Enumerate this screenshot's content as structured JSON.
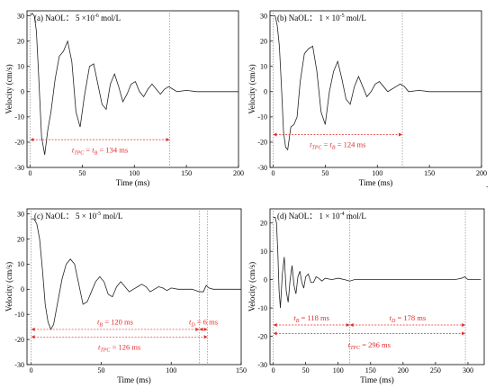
{
  "chart_data": [
    {
      "type": "line",
      "label": "(a)",
      "title_text": "NaOL：  5 ×10",
      "title_exp": "-6",
      "title_unit": " mol/L",
      "xlabel": "Time (ms)",
      "ylabel": "Velocity (cm/s)",
      "xlim": [
        -3,
        200
      ],
      "ylim": [
        -30,
        32
      ],
      "xticks": [
        0,
        50,
        100,
        150,
        200
      ],
      "yticks": [
        -30,
        -20,
        -10,
        0,
        10,
        20,
        30
      ],
      "series": [
        {
          "x": [
            0,
            2,
            4,
            6,
            8,
            11,
            14,
            17,
            20,
            24,
            28,
            32,
            36,
            40,
            44,
            48,
            52,
            57,
            61,
            65,
            69,
            73,
            77,
            81,
            85,
            89,
            93,
            97,
            101,
            105,
            109,
            113,
            117,
            121,
            125,
            129,
            133,
            137,
            141,
            150,
            160,
            170,
            180,
            190,
            200
          ],
          "y": [
            30,
            31,
            30,
            24,
            8,
            -18,
            -25,
            -15,
            -8,
            5,
            14,
            16,
            20,
            12,
            -8,
            -14,
            -2,
            10,
            11,
            3,
            -5,
            -7,
            3,
            7,
            2,
            -4,
            -1,
            3,
            4,
            0,
            -2,
            1,
            3,
            1,
            -1,
            1,
            2,
            1,
            0,
            0.5,
            0,
            0,
            0,
            0,
            0
          ]
        }
      ],
      "guides": [
        0,
        134
      ],
      "annotations": [
        {
          "text": "t",
          "sub": "TPC",
          "eq": " = ",
          "text2": "t",
          "sub2": "B",
          "value": " = 134 ms",
          "x_from": 0,
          "x_to": 134,
          "y": -19,
          "label_y": -23
        }
      ]
    },
    {
      "type": "line",
      "label": "(b)",
      "title_text": "NaOL：  1 × 10",
      "title_exp": "-5",
      "title_unit": " mol/L",
      "xlabel": "Time (ms)",
      "ylabel": "Velocity (cm/s)",
      "xlim": [
        -3,
        200
      ],
      "ylim": [
        -30,
        32
      ],
      "xticks": [
        0,
        50,
        100,
        150,
        200
      ],
      "yticks": [
        -30,
        -20,
        -10,
        0,
        10,
        20,
        30
      ],
      "series": [
        {
          "x": [
            0,
            2,
            4,
            6,
            8,
            10,
            12,
            14,
            17,
            20,
            23,
            26,
            30,
            34,
            38,
            42,
            46,
            50,
            54,
            58,
            62,
            66,
            70,
            74,
            78,
            82,
            86,
            90,
            94,
            98,
            102,
            106,
            110,
            114,
            118,
            122,
            126,
            130,
            140,
            150,
            160,
            170,
            180,
            190,
            200
          ],
          "y": [
            30,
            30,
            26,
            18,
            2,
            -16,
            -22,
            -23,
            -14,
            -13,
            -10,
            4,
            15,
            17,
            18,
            8,
            -8,
            -13,
            0,
            8,
            12,
            5,
            -3,
            -5,
            2,
            6,
            2,
            -2,
            0,
            3,
            4,
            2,
            0,
            1,
            2,
            3,
            2,
            0,
            0.5,
            0,
            0,
            0,
            0,
            0,
            0
          ]
        }
      ],
      "guides": [
        0,
        124
      ],
      "annotations": [
        {
          "text": "t",
          "sub": "TPC",
          "eq": " = ",
          "text2": "t",
          "sub2": "B",
          "value": " = 124 ms",
          "x_from": 0,
          "x_to": 124,
          "y": -17,
          "label_y": -21
        }
      ]
    },
    {
      "type": "line",
      "label": "(c)",
      "title_text": "NaOL：  5 × 10",
      "title_exp": "-5",
      "title_unit": " mol/L",
      "xlabel": "Time (ms)",
      "ylabel": "Velocity (cm/s)",
      "xlim": [
        -3,
        150
      ],
      "ylim": [
        -30,
        32
      ],
      "xticks": [
        0,
        50,
        100,
        150
      ],
      "yticks": [
        -30,
        -20,
        -10,
        0,
        10,
        20,
        30
      ],
      "series": [
        {
          "x": [
            0,
            2,
            4,
            6,
            8,
            10,
            12,
            14,
            16,
            18,
            20,
            22,
            25,
            28,
            31,
            34,
            37,
            40,
            43,
            46,
            49,
            52,
            55,
            58,
            61,
            64,
            67,
            70,
            73,
            76,
            79,
            82,
            85,
            88,
            91,
            94,
            97,
            100,
            105,
            110,
            115,
            120,
            123,
            125,
            127,
            130,
            135,
            140,
            145,
            150
          ],
          "y": [
            28,
            28,
            26,
            20,
            8,
            -6,
            -13,
            -16,
            -14,
            -8,
            -2,
            4,
            10,
            12,
            10,
            2,
            -6,
            -5,
            -1,
            3,
            5,
            3,
            -2,
            -3,
            1,
            3,
            1,
            -1,
            0,
            1,
            2,
            1,
            -1,
            0,
            1,
            0.5,
            -0.5,
            0.5,
            0,
            0,
            0,
            -1,
            -1,
            1.5,
            0.5,
            0,
            0,
            0,
            0,
            0
          ]
        }
      ],
      "guides": [
        0,
        120,
        126
      ],
      "annotations": [
        {
          "text": "t",
          "sub": "B",
          "value": " = 120 ms",
          "x_from": 0,
          "x_to": 120,
          "y": -16,
          "label_y": -13
        },
        {
          "text": "t",
          "sub": "D",
          "value": " = 6 ms",
          "x_from": 120,
          "x_to": 126,
          "y": -16,
          "label_y": -13
        },
        {
          "text": "t",
          "sub": "TPC",
          "value": " = 126 ms",
          "x_from": 0,
          "x_to": 126,
          "y": -19,
          "label_y": -23
        }
      ]
    },
    {
      "type": "line",
      "label": "(d)",
      "title_text": "NaOL：  1 × 10",
      "title_exp": "-4",
      "title_unit": " mol/L",
      "xlabel": "Time (ms)",
      "ylabel": "Velocity (cm/s)",
      "xlim": [
        -5,
        325
      ],
      "ylim": [
        -30,
        25
      ],
      "xticks": [
        0,
        50,
        100,
        150,
        200,
        250,
        300
      ],
      "yticks": [
        -30,
        -20,
        -10,
        0,
        10,
        20
      ],
      "series": [
        {
          "x": [
            0,
            3,
            5,
            7,
            9,
            11,
            14,
            17,
            20,
            23,
            26,
            29,
            32,
            35,
            38,
            41,
            44,
            47,
            50,
            54,
            58,
            62,
            66,
            70,
            75,
            80,
            90,
            100,
            110,
            118,
            125,
            140,
            160,
            180,
            200,
            220,
            240,
            260,
            280,
            290,
            295,
            300,
            310,
            320
          ],
          "y": [
            22,
            22,
            20,
            10,
            -4,
            -10,
            2,
            8,
            -4,
            -8,
            0,
            5,
            -2,
            -5,
            1,
            3,
            -1,
            -3,
            1,
            2,
            -1,
            -1,
            1,
            0.5,
            -0.5,
            0.5,
            0,
            0.5,
            0,
            -0.5,
            0,
            0,
            0,
            0,
            0,
            0,
            0,
            0,
            0,
            0.5,
            1,
            0,
            0,
            0
          ]
        }
      ],
      "guides": [
        0,
        118,
        296
      ],
      "annotations": [
        {
          "text": "t",
          "sub": "B",
          "value": " = 118 ms",
          "x_from": 0,
          "x_to": 118,
          "y": -16,
          "label_y": -13.5
        },
        {
          "text": "t",
          "sub": "D",
          "value": " = 178 ms",
          "x_from": 118,
          "x_to": 296,
          "y": -16,
          "label_y": -13.5
        },
        {
          "text": "t",
          "sub": "TPC",
          "value": " = 296 ms",
          "x_from": 0,
          "x_to": 296,
          "y": -19,
          "label_y": -23
        }
      ]
    }
  ],
  "extra_mark": "."
}
